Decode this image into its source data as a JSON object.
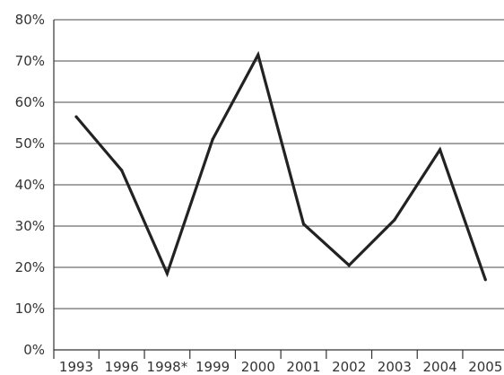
{
  "chart_data": {
    "type": "line",
    "title": "",
    "xlabel": "",
    "ylabel": "",
    "categories": [
      "1993",
      "1996",
      "1998*",
      "1999",
      "2000",
      "2001",
      "2002",
      "2003",
      "2004",
      "2005"
    ],
    "series": [
      {
        "values": [
          56.5,
          43.5,
          18.5,
          51,
          71.5,
          30.5,
          20.5,
          31.5,
          48.5,
          17
        ]
      }
    ],
    "y_ticks": [
      "0%",
      "10%",
      "20%",
      "30%",
      "40%",
      "50%",
      "60%",
      "70%",
      "80%"
    ],
    "ylim": [
      0,
      80
    ],
    "grid": true,
    "line_color": "#222222"
  }
}
